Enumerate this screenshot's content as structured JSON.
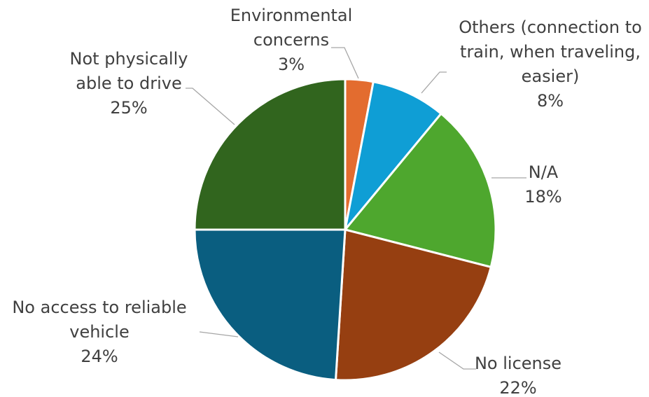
{
  "chart_data": {
    "type": "pie",
    "title": "",
    "legend": "none",
    "slices": [
      {
        "label_lines": [
          "Environmental",
          "concerns"
        ],
        "pct_label": "3%",
        "value": 3,
        "color": "#e36c2f"
      },
      {
        "label_lines": [
          "Others (connection to",
          "train, when traveling,",
          "easier)"
        ],
        "pct_label": "8%",
        "value": 8,
        "color": "#0f9ed5"
      },
      {
        "label_lines": [
          "N/A"
        ],
        "pct_label": "18%",
        "value": 18,
        "color": "#4ea72e"
      },
      {
        "label_lines": [
          "No license"
        ],
        "pct_label": "22%",
        "value": 22,
        "color": "#963f11"
      },
      {
        "label_lines": [
          "No access to reliable",
          "vehicle"
        ],
        "pct_label": "24%",
        "value": 24,
        "color": "#0a5e80"
      },
      {
        "label_lines": [
          "Not physically",
          "able to drive"
        ],
        "pct_label": "25%",
        "value": 25,
        "color": "#31651e"
      }
    ]
  }
}
